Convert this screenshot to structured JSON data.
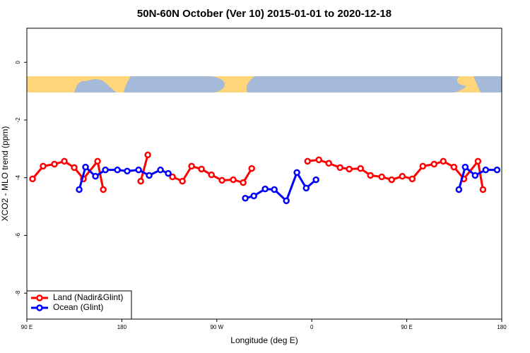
{
  "chart_data": {
    "type": "line",
    "title": "50N-60N October (Ver 10)   2015-01-01 to 2020-12-18",
    "x_label": "Longitude (deg E)",
    "y_label": "XCO2 - MLO trend (ppm)",
    "xlim": [
      90,
      540
    ],
    "ylim": [
      -8.9,
      1.18
    ],
    "xticks": [
      {
        "value": 90,
        "label": "90 E"
      },
      180,
      {
        "value": 270,
        "label": "90 W"
      },
      {
        "value": 360,
        "label": "0"
      },
      {
        "value": 450,
        "label": "90 E"
      },
      {
        "value": 540,
        "label": "180"
      }
    ],
    "yticks": [
      0,
      -2,
      -4,
      -6,
      -8
    ],
    "legend": "bottom-left",
    "series": [
      {
        "name": "Land (Nadir&Glint)",
        "color": "#ff0000",
        "x": [
          95.4,
          105.4,
          116.1,
          125.5,
          134.9,
          143.6,
          157.0,
          162.4,
          null,
          197.9,
          204.6,
          null,
          228.0,
          237.4,
          246.1,
          255.5,
          264.9,
          274.9,
          285.6,
          295.0,
          303.1,
          null,
          356.0,
          366.7,
          376.1,
          386.8,
          395.5,
          406.2,
          415.6,
          426.3,
          435.7,
          445.8,
          455.2,
          465.2,
          475.9,
          484.6,
          494.7,
          504.1,
          517.5,
          522.2
        ],
        "values": [
          -4.04,
          -3.6,
          -3.53,
          -3.43,
          -3.65,
          -4.04,
          -3.43,
          -4.41,
          null,
          -4.12,
          -3.21,
          null,
          -3.97,
          -4.12,
          -3.6,
          -3.7,
          -3.9,
          -4.09,
          -4.07,
          -4.17,
          -3.68,
          null,
          -3.43,
          -3.38,
          -3.5,
          -3.65,
          -3.7,
          -3.68,
          -3.92,
          -3.97,
          -4.07,
          -3.95,
          -4.04,
          -3.6,
          -3.53,
          -3.43,
          -3.63,
          -4.04,
          -3.43,
          -4.41
        ]
      },
      {
        "name": "Ocean (Glint)",
        "color": "#0000ff",
        "x": [
          139.6,
          145.6,
          155.0,
          164.4,
          175.8,
          185.1,
          195.9,
          205.9,
          216.6,
          224.0,
          null,
          297.0,
          305.1,
          315.8,
          324.5,
          335.9,
          345.9,
          354.7,
          364.0,
          null,
          499.4,
          505.4,
          514.8,
          524.8,
          535.6
        ],
        "values": [
          -4.41,
          -3.63,
          -3.95,
          -3.73,
          -3.73,
          -3.77,
          -3.73,
          -3.92,
          -3.73,
          -3.85,
          null,
          -4.71,
          -4.63,
          -4.39,
          -4.41,
          -4.8,
          -3.82,
          -4.36,
          -4.07,
          null,
          -4.41,
          -3.63,
          -3.92,
          -3.73,
          -3.73
        ]
      }
    ]
  }
}
